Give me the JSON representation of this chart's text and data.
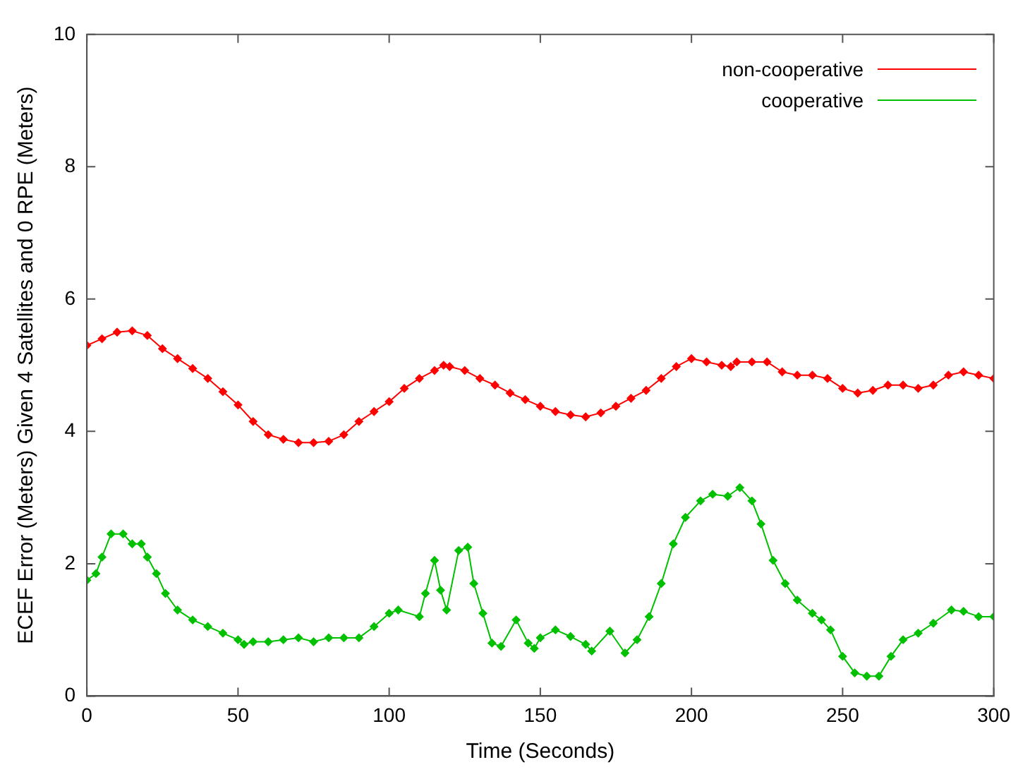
{
  "chart_data": {
    "type": "line",
    "xlabel": "Time (Seconds)",
    "ylabel": "ECEF Error (Meters) Given 4 Satellites and 0 RPE (Meters)",
    "xlim": [
      0,
      300
    ],
    "xticks": [
      0,
      50,
      100,
      150,
      200,
      250,
      300
    ],
    "ylim": [
      0,
      10
    ],
    "yticks": [
      0,
      2,
      4,
      6,
      8,
      10
    ],
    "grid": false,
    "legend": "top right",
    "marker": "diamond",
    "line_style": "solid",
    "series": [
      {
        "name": "non-cooperative",
        "color": "#ff0000",
        "x": [
          0,
          5,
          10,
          15,
          20,
          25,
          30,
          35,
          40,
          45,
          50,
          55,
          60,
          65,
          70,
          75,
          80,
          85,
          90,
          95,
          100,
          105,
          110,
          115,
          118,
          120,
          125,
          130,
          135,
          140,
          145,
          150,
          155,
          160,
          165,
          170,
          175,
          180,
          185,
          190,
          195,
          200,
          205,
          210,
          213,
          215,
          220,
          225,
          230,
          235,
          240,
          245,
          250,
          255,
          260,
          265,
          270,
          275,
          280,
          285,
          290,
          295,
          300
        ],
        "values": [
          5.3,
          5.4,
          5.5,
          5.52,
          5.45,
          5.25,
          5.1,
          4.95,
          4.8,
          4.6,
          4.4,
          4.15,
          3.95,
          3.88,
          3.83,
          3.83,
          3.85,
          3.95,
          4.15,
          4.3,
          4.45,
          4.65,
          4.8,
          4.92,
          5.0,
          4.98,
          4.92,
          4.8,
          4.7,
          4.58,
          4.48,
          4.38,
          4.3,
          4.25,
          4.22,
          4.28,
          4.38,
          4.5,
          4.62,
          4.8,
          4.98,
          5.1,
          5.05,
          5.0,
          4.98,
          5.05,
          5.05,
          5.05,
          4.9,
          4.85,
          4.85,
          4.8,
          4.65,
          4.58,
          4.62,
          4.7,
          4.7,
          4.65,
          4.7,
          4.85,
          4.9,
          4.85,
          4.8
        ]
      },
      {
        "name": "cooperative",
        "color": "#00c000",
        "x": [
          0,
          3,
          5,
          8,
          12,
          15,
          18,
          20,
          23,
          26,
          30,
          35,
          40,
          45,
          50,
          52,
          55,
          60,
          65,
          70,
          75,
          80,
          85,
          90,
          95,
          100,
          103,
          110,
          112,
          115,
          117,
          119,
          123,
          126,
          128,
          131,
          134,
          137,
          142,
          146,
          148,
          150,
          155,
          160,
          165,
          167,
          173,
          178,
          182,
          186,
          190,
          194,
          198,
          203,
          207,
          212,
          216,
          220,
          223,
          227,
          231,
          235,
          240,
          243,
          246,
          250,
          254,
          258,
          262,
          266,
          270,
          275,
          280,
          286,
          290,
          295,
          300
        ],
        "values": [
          1.75,
          1.85,
          2.1,
          2.45,
          2.45,
          2.3,
          2.3,
          2.1,
          1.85,
          1.55,
          1.3,
          1.15,
          1.05,
          0.95,
          0.85,
          0.78,
          0.82,
          0.82,
          0.85,
          0.88,
          0.82,
          0.88,
          0.88,
          0.88,
          1.05,
          1.25,
          1.3,
          1.2,
          1.55,
          2.05,
          1.6,
          1.3,
          2.2,
          2.25,
          1.7,
          1.25,
          0.8,
          0.75,
          1.15,
          0.8,
          0.72,
          0.88,
          1.0,
          0.9,
          0.78,
          0.68,
          0.98,
          0.65,
          0.85,
          1.2,
          1.7,
          2.3,
          2.7,
          2.95,
          3.05,
          3.02,
          3.15,
          2.95,
          2.6,
          2.05,
          1.7,
          1.45,
          1.25,
          1.15,
          1.0,
          0.6,
          0.35,
          0.3,
          0.3,
          0.6,
          0.85,
          0.95,
          1.1,
          1.3,
          1.28,
          1.2,
          1.2
        ]
      }
    ]
  }
}
